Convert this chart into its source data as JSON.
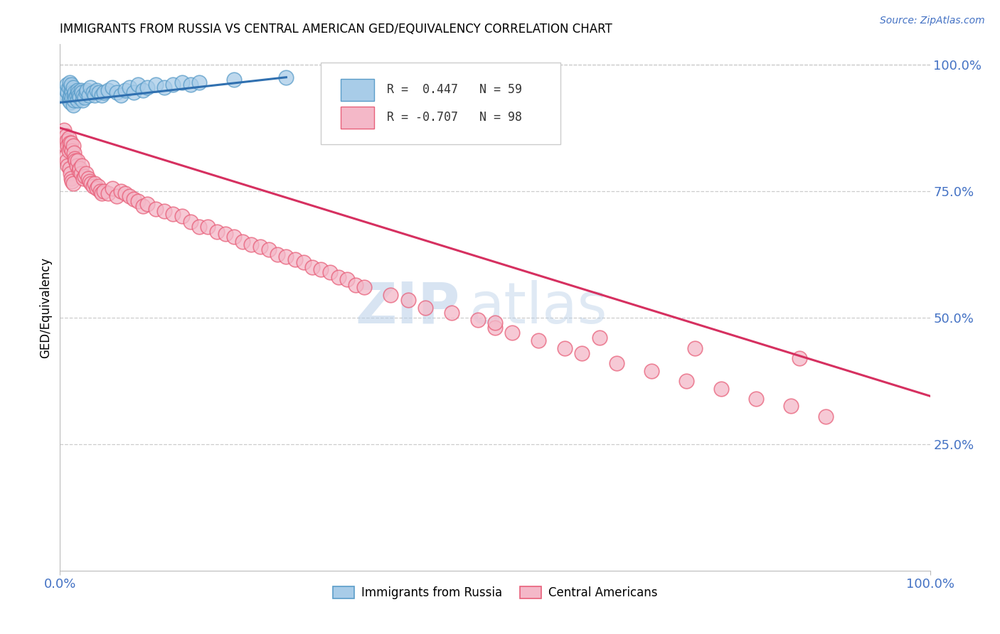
{
  "title": "IMMIGRANTS FROM RUSSIA VS CENTRAL AMERICAN GED/EQUIVALENCY CORRELATION CHART",
  "source": "Source: ZipAtlas.com",
  "ylabel": "GED/Equivalency",
  "right_yticks": [
    "100.0%",
    "75.0%",
    "50.0%",
    "25.0%"
  ],
  "right_ytick_vals": [
    1.0,
    0.75,
    0.5,
    0.25
  ],
  "legend_russia_r": "R =  0.447",
  "legend_russia_n": "N = 59",
  "legend_ca_r": "R = -0.707",
  "legend_ca_n": "N = 98",
  "russia_color": "#a8cce8",
  "russia_edge": "#5b9dc9",
  "ca_color": "#f4b8c8",
  "ca_edge": "#e8607a",
  "russia_line_color": "#3070b0",
  "ca_line_color": "#d63060",
  "background": "#ffffff",
  "grid_color": "#cccccc",
  "watermark_zip": "ZIP",
  "watermark_atlas": "atlas",
  "russia_x": [
    0.005,
    0.007,
    0.008,
    0.009,
    0.01,
    0.01,
    0.011,
    0.011,
    0.012,
    0.012,
    0.013,
    0.013,
    0.014,
    0.014,
    0.015,
    0.015,
    0.016,
    0.016,
    0.017,
    0.018,
    0.019,
    0.02,
    0.02,
    0.021,
    0.022,
    0.023,
    0.024,
    0.025,
    0.026,
    0.027,
    0.028,
    0.03,
    0.031,
    0.033,
    0.035,
    0.038,
    0.04,
    0.042,
    0.045,
    0.048,
    0.05,
    0.055,
    0.06,
    0.065,
    0.07,
    0.075,
    0.08,
    0.085,
    0.09,
    0.095,
    0.1,
    0.11,
    0.12,
    0.13,
    0.14,
    0.15,
    0.16,
    0.2,
    0.26
  ],
  "russia_y": [
    0.94,
    0.95,
    0.96,
    0.945,
    0.955,
    0.93,
    0.965,
    0.935,
    0.94,
    0.925,
    0.95,
    0.96,
    0.945,
    0.935,
    0.955,
    0.92,
    0.94,
    0.93,
    0.945,
    0.935,
    0.94,
    0.95,
    0.93,
    0.945,
    0.94,
    0.935,
    0.95,
    0.945,
    0.93,
    0.94,
    0.935,
    0.945,
    0.95,
    0.94,
    0.955,
    0.945,
    0.94,
    0.95,
    0.945,
    0.94,
    0.945,
    0.95,
    0.955,
    0.945,
    0.94,
    0.95,
    0.955,
    0.945,
    0.96,
    0.95,
    0.955,
    0.96,
    0.955,
    0.96,
    0.965,
    0.96,
    0.965,
    0.97,
    0.975
  ],
  "ca_x": [
    0.005,
    0.006,
    0.007,
    0.007,
    0.008,
    0.008,
    0.009,
    0.009,
    0.01,
    0.01,
    0.011,
    0.011,
    0.012,
    0.012,
    0.013,
    0.013,
    0.014,
    0.014,
    0.015,
    0.015,
    0.016,
    0.017,
    0.018,
    0.019,
    0.02,
    0.022,
    0.023,
    0.024,
    0.025,
    0.027,
    0.028,
    0.03,
    0.032,
    0.034,
    0.036,
    0.038,
    0.04,
    0.042,
    0.044,
    0.046,
    0.048,
    0.05,
    0.055,
    0.06,
    0.065,
    0.07,
    0.075,
    0.08,
    0.085,
    0.09,
    0.095,
    0.1,
    0.11,
    0.12,
    0.13,
    0.14,
    0.15,
    0.16,
    0.17,
    0.18,
    0.19,
    0.2,
    0.21,
    0.22,
    0.23,
    0.24,
    0.25,
    0.26,
    0.27,
    0.28,
    0.29,
    0.3,
    0.31,
    0.32,
    0.33,
    0.34,
    0.35,
    0.38,
    0.4,
    0.42,
    0.45,
    0.48,
    0.5,
    0.52,
    0.55,
    0.58,
    0.6,
    0.64,
    0.68,
    0.72,
    0.76,
    0.8,
    0.84,
    0.88,
    0.5,
    0.62,
    0.73,
    0.85
  ],
  "ca_y": [
    0.87,
    0.84,
    0.86,
    0.82,
    0.85,
    0.81,
    0.84,
    0.8,
    0.855,
    0.83,
    0.845,
    0.795,
    0.835,
    0.785,
    0.845,
    0.775,
    0.83,
    0.77,
    0.84,
    0.765,
    0.825,
    0.815,
    0.81,
    0.8,
    0.81,
    0.79,
    0.795,
    0.785,
    0.8,
    0.775,
    0.78,
    0.785,
    0.775,
    0.77,
    0.765,
    0.76,
    0.765,
    0.755,
    0.76,
    0.75,
    0.745,
    0.75,
    0.745,
    0.755,
    0.74,
    0.75,
    0.745,
    0.74,
    0.735,
    0.73,
    0.72,
    0.725,
    0.715,
    0.71,
    0.705,
    0.7,
    0.69,
    0.68,
    0.68,
    0.67,
    0.665,
    0.66,
    0.65,
    0.645,
    0.64,
    0.635,
    0.625,
    0.62,
    0.615,
    0.61,
    0.6,
    0.595,
    0.59,
    0.58,
    0.575,
    0.565,
    0.56,
    0.545,
    0.535,
    0.52,
    0.51,
    0.495,
    0.48,
    0.47,
    0.455,
    0.44,
    0.43,
    0.41,
    0.395,
    0.375,
    0.36,
    0.34,
    0.325,
    0.305,
    0.49,
    0.46,
    0.44,
    0.42
  ],
  "xlim": [
    0,
    1.0
  ],
  "ylim": [
    0.0,
    1.04
  ],
  "russia_line_x": [
    0.0,
    0.26
  ],
  "russia_line_y_start": 0.925,
  "russia_line_y_end": 0.975,
  "ca_line_x": [
    0.0,
    1.0
  ],
  "ca_line_y_start": 0.875,
  "ca_line_y_end": 0.345
}
